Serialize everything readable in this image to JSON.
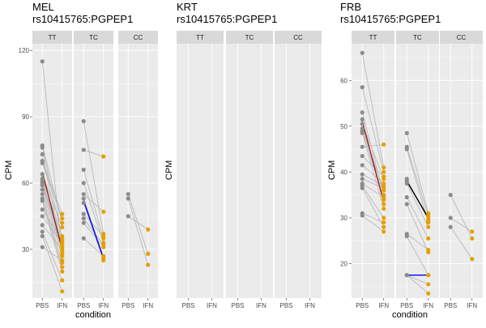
{
  "chart_data": [
    {
      "type": "scatter",
      "title_line1": "MEL",
      "title_line2": "rs10415765:PGPEP1",
      "xlabel": "condition",
      "ylabel": "CPM",
      "x_categories": [
        "PBS",
        "IFN"
      ],
      "y_ticks": [
        30,
        60,
        90,
        120
      ],
      "ylim": [
        8,
        123
      ],
      "facets": [
        {
          "label": "TT",
          "pairs": [
            [
              115,
              28
            ],
            [
              77,
              42
            ],
            [
              76,
              35
            ],
            [
              73,
              30
            ],
            [
              70,
              46
            ],
            [
              69,
              44
            ],
            [
              64,
              40
            ],
            [
              62,
              36
            ],
            [
              61,
              32
            ],
            [
              60,
              31
            ],
            [
              59,
              29
            ],
            [
              57,
              27
            ],
            [
              55,
              24
            ],
            [
              53,
              22
            ],
            [
              52,
              20
            ],
            [
              48,
              34
            ],
            [
              45,
              33
            ],
            [
              41,
              30
            ],
            [
              38,
              16
            ],
            [
              36,
              11
            ],
            [
              31,
              25
            ]
          ],
          "mean_line": [
            65,
            30
          ]
        },
        {
          "label": "TC",
          "pairs": [
            [
              88,
              37
            ],
            [
              75,
              72
            ],
            [
              66,
              35
            ],
            [
              60,
              33
            ],
            [
              55,
              47
            ],
            [
              53,
              26
            ],
            [
              51,
              25
            ],
            [
              46,
              36
            ],
            [
              44,
              32
            ],
            [
              42,
              31
            ],
            [
              35,
              27
            ]
          ],
          "mean_line": [
            52,
            26
          ]
        },
        {
          "label": "CC",
          "pairs": [
            [
              55,
              28
            ],
            [
              53,
              23
            ],
            [
              45,
              39
            ]
          ]
        }
      ],
      "mean_line_colors": [
        "#a01f1f",
        "#0000ff"
      ]
    },
    {
      "type": "scatter",
      "title_line1": "KRT",
      "title_line2": "rs10415765:PGPEP1",
      "xlabel": "",
      "ylabel": "CPM",
      "x_categories": [
        "PBS",
        "IFN"
      ],
      "y_ticks": [],
      "facets": [
        {
          "label": "TT",
          "pairs": []
        },
        {
          "label": "TC",
          "pairs": []
        },
        {
          "label": "CC",
          "pairs": []
        }
      ]
    },
    {
      "type": "scatter",
      "title_line1": "FRB",
      "title_line2": "rs10415765:PGPEP1",
      "xlabel": "condition",
      "ylabel": "CPM",
      "x_categories": [
        "PBS",
        "IFN"
      ],
      "y_ticks": [
        20,
        30,
        40,
        50,
        60
      ],
      "ylim": [
        12.5,
        68
      ],
      "facets": [
        {
          "label": "TT",
          "pairs": [
            [
              66,
              41
            ],
            [
              58.5,
              40
            ],
            [
              53,
              35
            ],
            [
              51.5,
              33
            ],
            [
              50.5,
              38.5
            ],
            [
              49.5,
              36
            ],
            [
              49,
              34
            ],
            [
              48.5,
              32
            ],
            [
              45.5,
              46
            ],
            [
              43.5,
              39
            ],
            [
              41.5,
              37.5
            ],
            [
              39.5,
              37
            ],
            [
              38.5,
              36.5
            ],
            [
              37.5,
              34.5
            ],
            [
              37,
              30
            ],
            [
              36.5,
              28
            ],
            [
              31,
              29
            ],
            [
              30.5,
              27
            ]
          ],
          "mean_line": [
            51,
            33.5
          ]
        },
        {
          "label": "TC",
          "pairs": [
            [
              48.5,
              31
            ],
            [
              45.5,
              30.5
            ],
            [
              45,
              29
            ],
            [
              38.5,
              29.5
            ],
            [
              38,
              30
            ],
            [
              37.5,
              28
            ],
            [
              34.5,
              25.5
            ],
            [
              33,
              22.5
            ],
            [
              26.5,
              23
            ],
            [
              26,
              17.5
            ],
            [
              17.5,
              17.5
            ],
            [
              17.5,
              15.5
            ],
            [
              17.5,
              13.5
            ]
          ],
          "mean_line": [
            38,
            30
          ],
          "blue_line": [
            17.5,
            17.5
          ]
        },
        {
          "label": "CC",
          "pairs": [
            [
              35,
              25.5
            ],
            [
              30,
              27
            ],
            [
              28,
              21
            ]
          ]
        }
      ],
      "mean_line_colors": [
        "#a01f1f",
        "#000000",
        "#0000ff"
      ]
    }
  ],
  "colors": {
    "panel": "#ebebeb",
    "strip": "#d9d9d9",
    "grid_major": "#ffffff",
    "point_pbs": "#8c8c8c",
    "point_ifn": "#e69f00",
    "pair_line": "#b3b3b3"
  }
}
